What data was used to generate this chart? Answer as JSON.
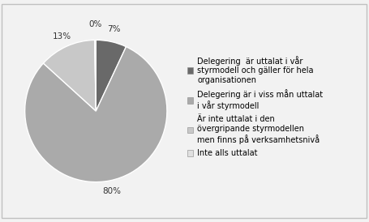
{
  "values": [
    7,
    80,
    13,
    0.3
  ],
  "display_labels": [
    "7%",
    "80%",
    "13%",
    "0%"
  ],
  "colors": [
    "#696969",
    "#aaaaaa",
    "#c8c8c8",
    "#e0e0e0"
  ],
  "legend_labels": [
    "Delegering  är uttalat i vår\nstyrmodell och gäller för hela\norganisationen",
    "Delegering är i viss mån uttalat\ni vår styrmodell",
    "Är inte uttalat i den\növergripande styrmodellen\nmen finns på verksamhetsnivå",
    "Inte alls uttalat"
  ],
  "startangle": 90,
  "background_color": "#f2f2f2",
  "border_color": "#c0c0c0",
  "text_fontsize": 7.5,
  "legend_fontsize": 7.0
}
